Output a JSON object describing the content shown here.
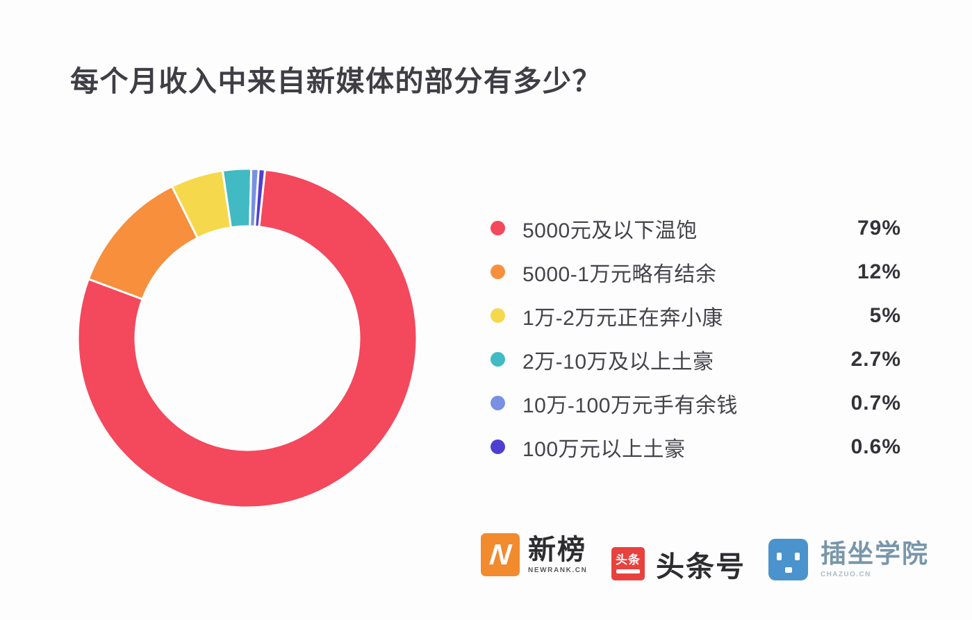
{
  "title": "每个月收入中来自新媒体的部分有多少？",
  "chart_data": {
    "type": "pie",
    "subtype": "donut",
    "title": "每个月收入中来自新媒体的部分有多少？",
    "categories": [
      "5000元及以下温饱",
      "5000-1万元略有结余",
      "1万-2万元正在奔小康",
      "2万-10万及以上土豪",
      "10万-100万元手有余钱",
      "100万元以上土豪"
    ],
    "values": [
      79,
      12,
      5,
      2.7,
      0.7,
      0.6
    ],
    "value_labels": [
      "79%",
      "12%",
      "5%",
      "2.7%",
      "0.7%",
      "0.6%"
    ],
    "colors": [
      "#f4485c",
      "#f78f3d",
      "#f6d84c",
      "#41bac4",
      "#7a90e2",
      "#4f3fd0"
    ],
    "start_angle_deg": 6,
    "direction": "clockwise",
    "donut_hole_ratio": 0.655,
    "slice_gap_color": "#ffffff",
    "legend_position": "right",
    "grid": false
  },
  "footer": {
    "logos": [
      {
        "name": "newrank",
        "icon_letter": "N",
        "text": "新榜",
        "subtext": "NEWRANK.CN",
        "icon_color": "#f28a2e"
      },
      {
        "name": "toutiao",
        "badge_text": "头条",
        "text": "头条号",
        "icon_color": "#e8413e"
      },
      {
        "name": "chazuo",
        "text": "插坐学院",
        "subtext": "CHAZUO.CN",
        "icon_color": "#4a93cd"
      }
    ]
  }
}
